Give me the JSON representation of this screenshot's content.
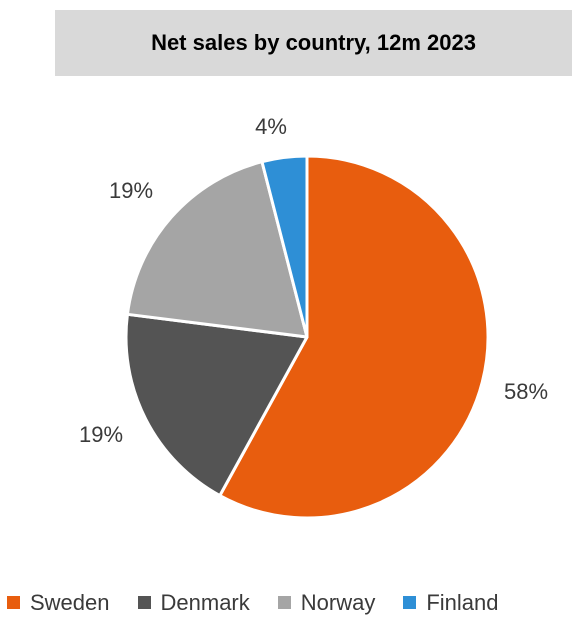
{
  "chart_data": {
    "type": "pie",
    "title": "Net sales by country, 12m 2023",
    "categories": [
      "Sweden",
      "Denmark",
      "Norway",
      "Finland"
    ],
    "values": [
      58,
      19,
      19,
      4
    ],
    "labels": [
      "58%",
      "19%",
      "19%",
      "4%"
    ],
    "colors": [
      "#e85d0e",
      "#545454",
      "#a5a5a5",
      "#2e8fd6"
    ],
    "legend_position": "bottom",
    "legend": [
      "Sweden",
      "Denmark",
      "Norway",
      "Finland"
    ]
  }
}
